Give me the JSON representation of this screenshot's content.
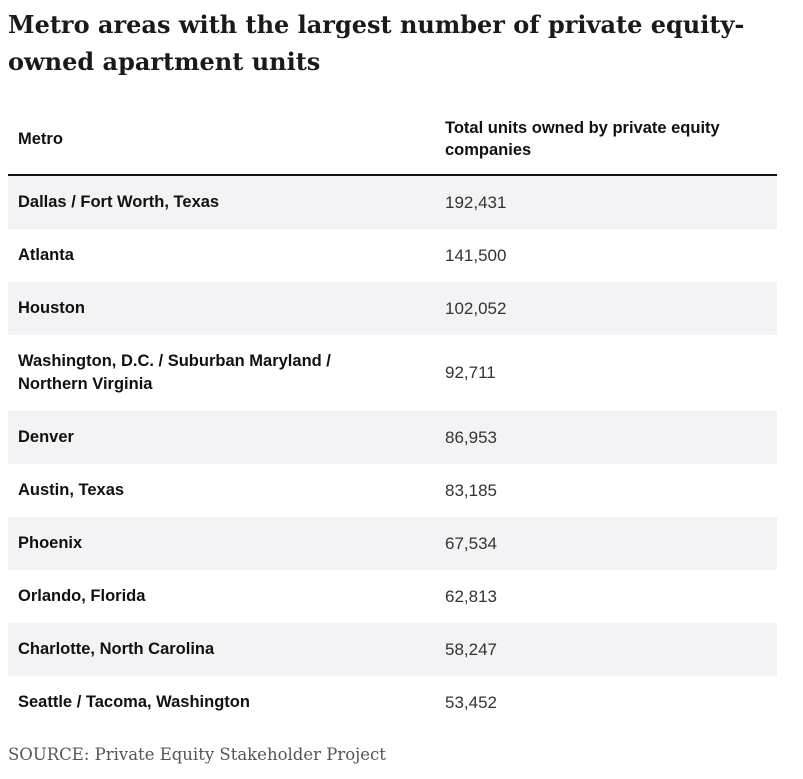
{
  "title": "Metro areas with the largest number of private equity-owned apartment units",
  "chart_data": {
    "type": "table",
    "columns": [
      "Metro",
      "Total units owned by private equity companies"
    ],
    "rows": [
      {
        "metro": "Dallas / Fort Worth, Texas",
        "units": "192,431"
      },
      {
        "metro": "Atlanta",
        "units": "141,500"
      },
      {
        "metro": "Houston",
        "units": "102,052"
      },
      {
        "metro": "Washington, D.C. / Suburban Maryland / Northern Virginia",
        "units": "92,711"
      },
      {
        "metro": "Denver",
        "units": "86,953"
      },
      {
        "metro": "Austin, Texas",
        "units": "83,185"
      },
      {
        "metro": "Phoenix",
        "units": "67,534"
      },
      {
        "metro": "Orlando, Florida",
        "units": "62,813"
      },
      {
        "metro": "Charlotte, North Carolina",
        "units": "58,247"
      },
      {
        "metro": "Seattle / Tacoma, Washington",
        "units": "53,452"
      }
    ]
  },
  "source": "SOURCE: Private Equity Stakeholder Project",
  "colors": {
    "row_shade": "#f3f3f6",
    "rule": "#111111"
  }
}
